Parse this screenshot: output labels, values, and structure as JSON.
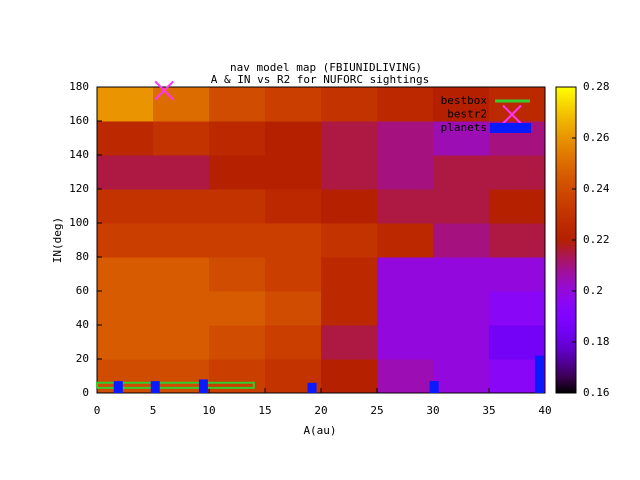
{
  "chart_data": {
    "type": "heatmap",
    "title": "nav model map (FBIUNIDLIVING)",
    "subtitle": "A & IN vs R2 for NUFORC sightings",
    "x_label": "A(au)",
    "y_label": "IN(deg)",
    "xlim": [
      0,
      40
    ],
    "xticks": [
      0,
      5,
      10,
      15,
      20,
      25,
      30,
      35,
      40
    ],
    "ylim": [
      0,
      180
    ],
    "yticks": [
      0,
      20,
      40,
      60,
      80,
      100,
      120,
      140,
      160,
      180
    ],
    "x": [
      2.5,
      7.5,
      12.5,
      17.5,
      22.5,
      27.5,
      32.5,
      37.5
    ],
    "y": [
      10,
      30,
      50,
      70,
      90,
      110,
      130,
      150,
      170
    ],
    "z": [
      [
        0.24,
        0.24,
        0.235,
        0.23,
        0.22,
        0.205,
        0.2,
        0.195
      ],
      [
        0.245,
        0.245,
        0.24,
        0.235,
        0.215,
        0.2,
        0.2,
        0.185
      ],
      [
        0.245,
        0.245,
        0.245,
        0.24,
        0.225,
        0.2,
        0.2,
        0.195
      ],
      [
        0.245,
        0.245,
        0.24,
        0.235,
        0.225,
        0.2,
        0.2,
        0.2
      ],
      [
        0.235,
        0.235,
        0.235,
        0.235,
        0.23,
        0.225,
        0.21,
        0.215
      ],
      [
        0.23,
        0.23,
        0.23,
        0.225,
        0.22,
        0.215,
        0.215,
        0.22
      ],
      [
        0.215,
        0.215,
        0.22,
        0.22,
        0.215,
        0.21,
        0.215,
        0.215
      ],
      [
        0.225,
        0.23,
        0.225,
        0.22,
        0.215,
        0.21,
        0.205,
        0.21
      ],
      [
        0.26,
        0.25,
        0.24,
        0.235,
        0.23,
        0.225,
        0.22,
        0.225
      ]
    ],
    "colorbar": {
      "lim": [
        0.16,
        0.28
      ],
      "ticks": [
        0.16,
        0.18,
        0.2,
        0.22,
        0.24,
        0.26,
        0.28
      ]
    },
    "series": [
      {
        "name": "bestbox",
        "kind": "line",
        "color": "#33cc33",
        "x": [
          0,
          14,
          14,
          0,
          0
        ],
        "values": [
          3,
          3,
          6,
          6,
          3
        ]
      },
      {
        "name": "bestr2",
        "kind": "point",
        "color": "#ff33ff",
        "x": [
          6
        ],
        "values": [
          178
        ]
      },
      {
        "name": "planets",
        "kind": "bar",
        "color": "#0a1aff",
        "x": [
          1.9,
          5.2,
          9.5,
          19.2,
          30.1,
          39.5
        ],
        "values": [
          7,
          7,
          8,
          6,
          7,
          22
        ]
      }
    ]
  }
}
